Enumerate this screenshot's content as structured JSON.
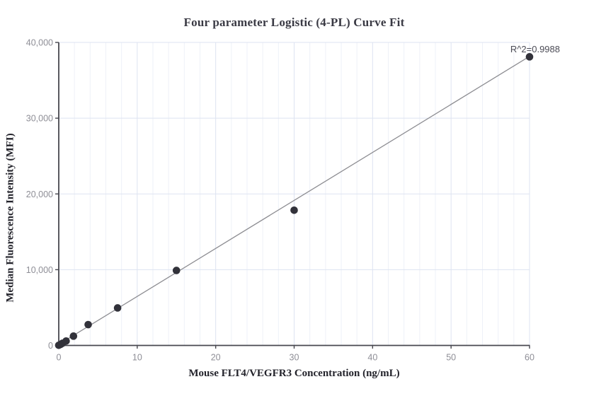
{
  "chart_data": {
    "type": "scatter",
    "title": "Four parameter Logistic (4-PL) Curve Fit",
    "xlabel": "Mouse FLT4/VEGFR3 Concentration (ng/mL)",
    "ylabel": "Median Fluorescence Intensity (MFI)",
    "annotation": "R^2=0.9988",
    "xlim": [
      0,
      60
    ],
    "ylim": [
      0,
      40000
    ],
    "x_ticks": [
      0,
      10,
      20,
      30,
      40,
      50,
      60
    ],
    "x_tick_labels": [
      "0",
      "10",
      "20",
      "30",
      "40",
      "50",
      "60"
    ],
    "y_ticks": [
      0,
      10000,
      20000,
      30000,
      40000
    ],
    "y_tick_labels": [
      "0",
      "10,000",
      "20,000",
      "30,000",
      "40,000"
    ],
    "grid": {
      "minor_x_step": 2,
      "horizontal_major": true,
      "vertical_major": true
    },
    "points": [
      {
        "x": 0,
        "y": 20
      },
      {
        "x": 0.234,
        "y": 140
      },
      {
        "x": 0.469,
        "y": 290
      },
      {
        "x": 0.938,
        "y": 580
      },
      {
        "x": 1.875,
        "y": 1230
      },
      {
        "x": 3.75,
        "y": 2750
      },
      {
        "x": 7.5,
        "y": 4950
      },
      {
        "x": 15,
        "y": 9900
      },
      {
        "x": 30,
        "y": 17850
      },
      {
        "x": 60,
        "y": 38100
      }
    ],
    "fit_line": {
      "x1": 0,
      "y1": 130,
      "x2": 60,
      "y2": 38160
    },
    "colors": {
      "background": "#ffffff",
      "point": "#32323a",
      "fit_line": "#8d8d92",
      "axis": "#47474f",
      "tick_label": "#8e8e96",
      "grid_minor": "#eef1f8",
      "grid_major": "#dde3f1",
      "title_text": "#3a3a44",
      "axis_label_text": "#23232b",
      "annotation_text": "#4b4b55"
    }
  }
}
